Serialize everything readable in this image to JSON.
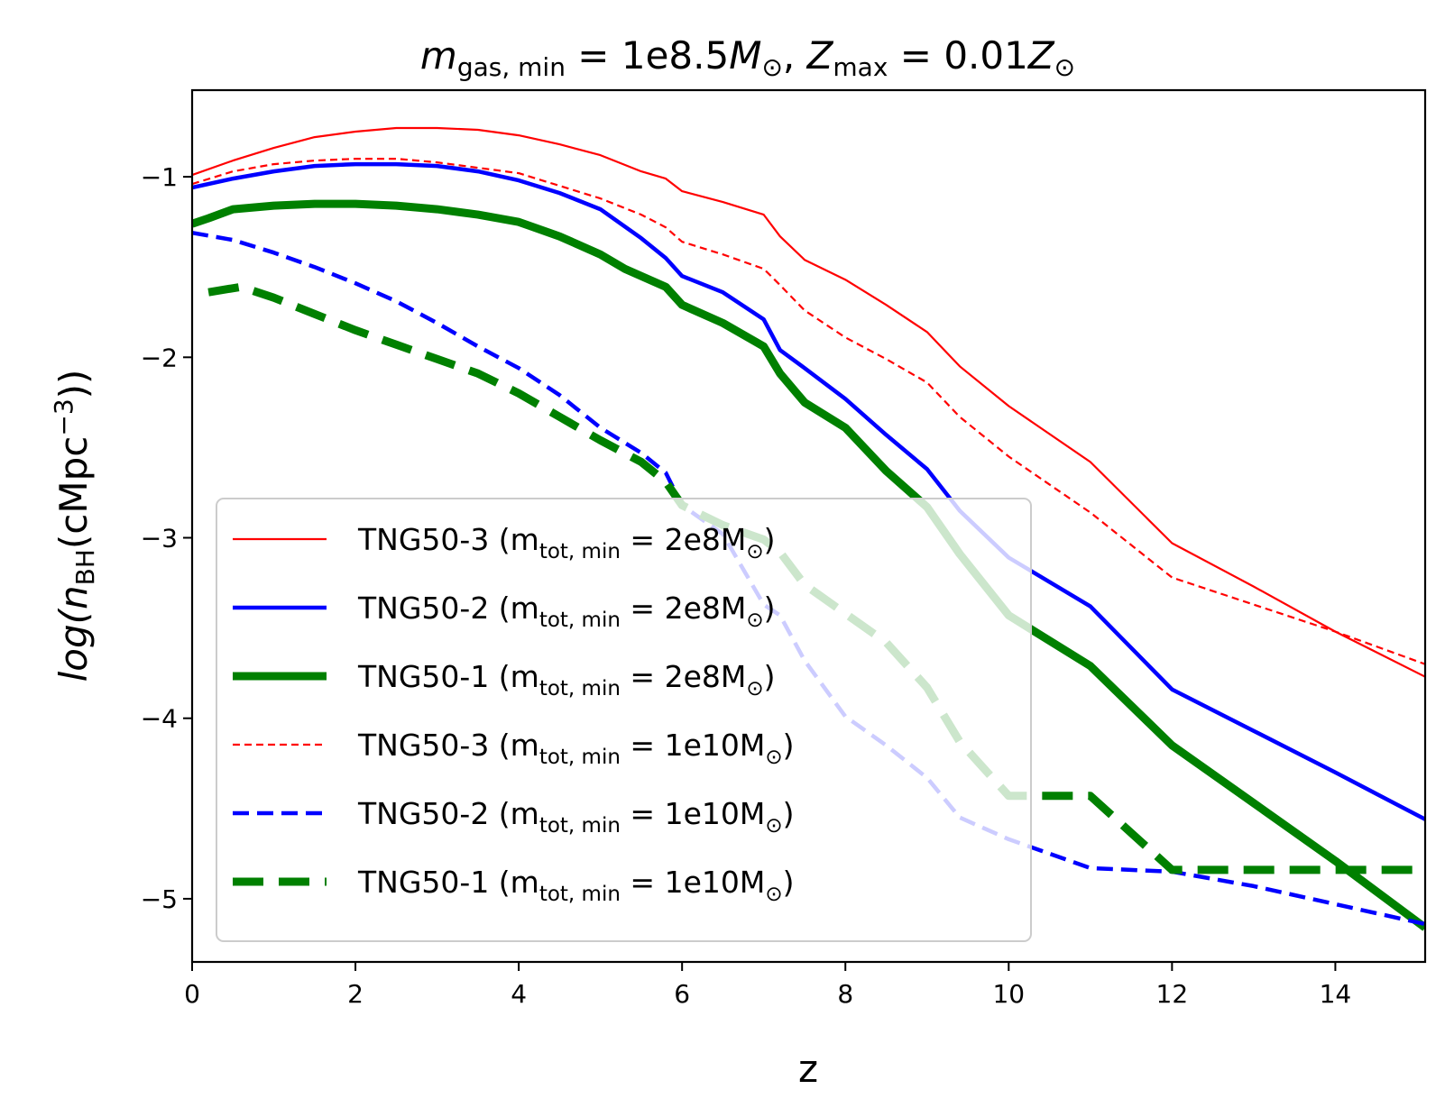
{
  "chart_data": {
    "type": "line",
    "title": {
      "var1": "m",
      "var1_sub": "gas, min",
      "eq1": " = 1e8.5",
      "unit1": "M",
      "unit1_sub": "⊙",
      "sep": ", ",
      "var2": "Z",
      "var2_sub": "max",
      "eq2": " = 0.01",
      "unit2": "Z",
      "unit2_sub": "⊙"
    },
    "xlabel": "z",
    "ylabel": {
      "prefix": "log(",
      "var": "n",
      "sub": "BH",
      "mid": "(cMpc",
      "sup": "−3",
      "suffix": "))"
    },
    "xlim": [
      0,
      15.1
    ],
    "ylim": [
      -5.35,
      -0.52
    ],
    "xticks": [
      0,
      2,
      4,
      6,
      8,
      10,
      12,
      14
    ],
    "yticks": [
      -1,
      -2,
      -3,
      -4,
      -5
    ],
    "xtick_labels": [
      "0",
      "2",
      "4",
      "6",
      "8",
      "10",
      "12",
      "14"
    ],
    "ytick_labels": [
      "−1",
      "−2",
      "−3",
      "−4",
      "−5"
    ],
    "series": [
      {
        "name": "TNG50-3",
        "label_main": "TNG50-3 (m",
        "label_sub": "tot, min",
        "label_eq": " = 2e8M",
        "label_odot": "⊙",
        "label_end": ")",
        "color": "#ff0000",
        "style": "solid",
        "x": [
          0,
          0.5,
          1,
          1.5,
          2,
          2.5,
          3,
          3.5,
          4,
          4.5,
          5,
          5.5,
          5.8,
          6,
          6.5,
          7,
          7.2,
          7.5,
          8,
          8.5,
          9,
          9.4,
          10,
          11,
          12,
          13,
          14,
          15.1
        ],
        "y": [
          -0.99,
          -0.91,
          -0.84,
          -0.78,
          -0.75,
          -0.73,
          -0.73,
          -0.74,
          -0.77,
          -0.82,
          -0.88,
          -0.97,
          -1.01,
          -1.08,
          -1.14,
          -1.21,
          -1.33,
          -1.46,
          -1.57,
          -1.71,
          -1.86,
          -2.05,
          -2.27,
          -2.58,
          -3.03,
          -3.27,
          -3.52,
          -3.77
        ]
      },
      {
        "name": "TNG50-2",
        "label_main": "TNG50-2 (m",
        "label_sub": "tot, min",
        "label_eq": " = 2e8M",
        "label_odot": "⊙",
        "label_end": ")",
        "color": "#0000ff",
        "style": "solid",
        "x": [
          0,
          0.5,
          1,
          1.5,
          2,
          2.5,
          3,
          3.5,
          4,
          4.5,
          5,
          5.5,
          5.8,
          6,
          6.5,
          7,
          7.2,
          7.5,
          8,
          8.5,
          9,
          9.4,
          10,
          11,
          12,
          13,
          14,
          15.1
        ],
        "y": [
          -1.06,
          -1.01,
          -0.97,
          -0.94,
          -0.93,
          -0.93,
          -0.94,
          -0.97,
          -1.02,
          -1.09,
          -1.18,
          -1.34,
          -1.45,
          -1.55,
          -1.64,
          -1.79,
          -1.96,
          -2.06,
          -2.23,
          -2.43,
          -2.62,
          -2.85,
          -3.11,
          -3.38,
          -3.84,
          -4.07,
          -4.3,
          -4.56
        ]
      },
      {
        "name": "TNG50-1",
        "label_main": "TNG50-1 (m",
        "label_sub": "tot, min",
        "label_eq": " = 2e8M",
        "label_odot": "⊙",
        "label_end": ")",
        "color": "#008000",
        "style": "solid",
        "x": [
          0,
          0.2,
          0.5,
          1,
          1.5,
          2,
          2.5,
          3,
          3.5,
          4,
          4.5,
          5,
          5.3,
          5.8,
          6,
          6.5,
          7,
          7.2,
          7.5,
          8,
          8.5,
          9,
          9.4,
          10,
          11,
          12,
          13,
          14,
          15.1
        ],
        "y": [
          -1.26,
          -1.23,
          -1.18,
          -1.16,
          -1.15,
          -1.15,
          -1.16,
          -1.18,
          -1.21,
          -1.25,
          -1.33,
          -1.43,
          -1.51,
          -1.61,
          -1.71,
          -1.81,
          -1.94,
          -2.09,
          -2.25,
          -2.39,
          -2.63,
          -2.83,
          -3.09,
          -3.43,
          -3.71,
          -4.15,
          -4.47,
          -4.79,
          -5.16
        ]
      },
      {
        "name": "TNG50-3",
        "label_main": "TNG50-3 (m",
        "label_sub": "tot, min",
        "label_eq": " = 1e10M",
        "label_odot": "⊙",
        "label_end": ")",
        "color": "#ff0000",
        "style": "dashed-thin",
        "x": [
          0,
          0.5,
          1,
          1.5,
          2,
          2.5,
          3,
          3.5,
          4,
          4.5,
          5,
          5.5,
          5.8,
          6,
          6.5,
          7,
          7.2,
          7.5,
          8,
          8.5,
          9,
          9.4,
          10,
          11,
          12,
          13,
          14,
          15.1
        ],
        "y": [
          -1.04,
          -0.97,
          -0.93,
          -0.91,
          -0.9,
          -0.9,
          -0.92,
          -0.95,
          -0.98,
          -1.05,
          -1.12,
          -1.21,
          -1.28,
          -1.36,
          -1.43,
          -1.51,
          -1.6,
          -1.74,
          -1.89,
          -2.01,
          -2.14,
          -2.33,
          -2.55,
          -2.86,
          -3.22,
          -3.37,
          -3.52,
          -3.7
        ]
      },
      {
        "name": "TNG50-2",
        "label_main": "TNG50-2 (m",
        "label_sub": "tot, min",
        "label_eq": " = 1e10M",
        "label_odot": "⊙",
        "label_end": ")",
        "color": "#0000ff",
        "style": "dashed",
        "x": [
          0,
          0.5,
          1,
          1.5,
          2,
          2.5,
          3,
          3.5,
          4,
          4.5,
          5,
          5.5,
          5.8,
          6,
          6.5,
          7,
          7.2,
          7.5,
          8,
          8.5,
          9,
          9.4,
          10,
          11,
          12,
          13,
          14,
          15.1
        ],
        "y": [
          -1.31,
          -1.35,
          -1.42,
          -1.5,
          -1.59,
          -1.69,
          -1.81,
          -1.94,
          -2.06,
          -2.21,
          -2.39,
          -2.53,
          -2.64,
          -2.82,
          -2.98,
          -3.37,
          -3.43,
          -3.68,
          -3.99,
          -4.15,
          -4.33,
          -4.55,
          -4.67,
          -4.83,
          -4.85,
          -4.93,
          -5.03,
          -5.14
        ]
      },
      {
        "name": "TNG50-1",
        "label_main": "TNG50-1 (m",
        "label_sub": "tot, min",
        "label_eq": " = 1e10M",
        "label_odot": "⊙",
        "label_end": ")",
        "color": "#008000",
        "style": "dashed-thick",
        "x": [
          0.2,
          0.6,
          1,
          1.5,
          2,
          2.5,
          3,
          3.5,
          4,
          4.5,
          5,
          5.5,
          5.8,
          6,
          6.5,
          7,
          7.2,
          7.5,
          8,
          8.5,
          9,
          9.4,
          10,
          11,
          12,
          13,
          14,
          15.1
        ],
        "y": [
          -1.64,
          -1.61,
          -1.67,
          -1.76,
          -1.85,
          -1.93,
          -2.01,
          -2.09,
          -2.2,
          -2.33,
          -2.46,
          -2.58,
          -2.69,
          -2.82,
          -2.93,
          -3.01,
          -3.08,
          -3.26,
          -3.42,
          -3.58,
          -3.83,
          -4.13,
          -4.43,
          -4.43,
          -4.84,
          -4.84,
          -4.84,
          -4.84
        ]
      }
    ],
    "legend_position": "lower-left"
  }
}
